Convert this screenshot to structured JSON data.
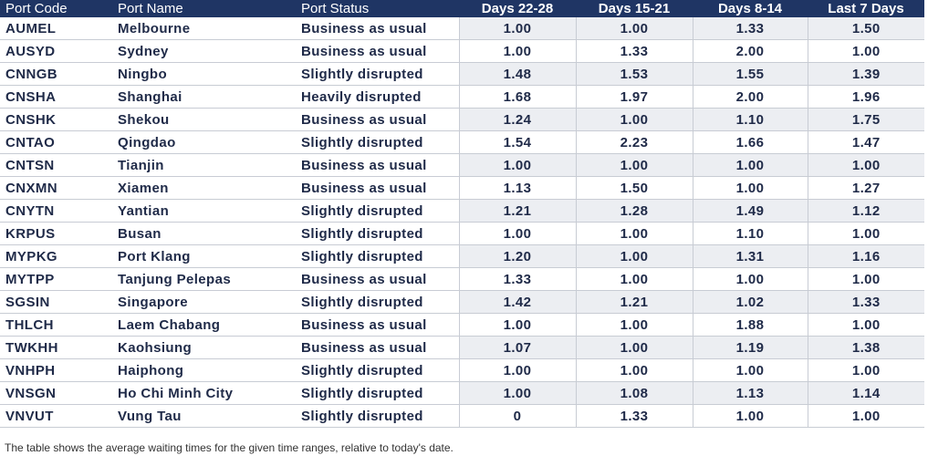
{
  "table": {
    "headers": [
      "Port Code",
      "Port Name",
      "Port Status",
      "Days 22-28",
      "Days 15-21",
      "Days 8-14",
      "Last 7 Days"
    ],
    "rows": [
      {
        "code": "AUMEL",
        "name": "Melbourne",
        "status": "Business as usual",
        "d22_28": "1.00",
        "d15_21": "1.00",
        "d8_14": "1.33",
        "last7": "1.50"
      },
      {
        "code": "AUSYD",
        "name": "Sydney",
        "status": "Business as usual",
        "d22_28": "1.00",
        "d15_21": "1.33",
        "d8_14": "2.00",
        "last7": "1.00"
      },
      {
        "code": "CNNGB",
        "name": "Ningbo",
        "status": "Slightly disrupted",
        "d22_28": "1.48",
        "d15_21": "1.53",
        "d8_14": "1.55",
        "last7": "1.39"
      },
      {
        "code": "CNSHA",
        "name": "Shanghai",
        "status": "Heavily disrupted",
        "d22_28": "1.68",
        "d15_21": "1.97",
        "d8_14": "2.00",
        "last7": "1.96"
      },
      {
        "code": "CNSHK",
        "name": "Shekou",
        "status": "Business as usual",
        "d22_28": "1.24",
        "d15_21": "1.00",
        "d8_14": "1.10",
        "last7": "1.75"
      },
      {
        "code": "CNTAO",
        "name": "Qingdao",
        "status": "Slightly disrupted",
        "d22_28": "1.54",
        "d15_21": "2.23",
        "d8_14": "1.66",
        "last7": "1.47"
      },
      {
        "code": "CNTSN",
        "name": "Tianjin",
        "status": "Business as usual",
        "d22_28": "1.00",
        "d15_21": "1.00",
        "d8_14": "1.00",
        "last7": "1.00"
      },
      {
        "code": "CNXMN",
        "name": "Xiamen",
        "status": "Business as usual",
        "d22_28": "1.13",
        "d15_21": "1.50",
        "d8_14": "1.00",
        "last7": "1.27"
      },
      {
        "code": "CNYTN",
        "name": "Yantian",
        "status": "Slightly disrupted",
        "d22_28": "1.21",
        "d15_21": "1.28",
        "d8_14": "1.49",
        "last7": "1.12"
      },
      {
        "code": "KRPUS",
        "name": "Busan",
        "status": "Slightly disrupted",
        "d22_28": "1.00",
        "d15_21": "1.00",
        "d8_14": "1.10",
        "last7": "1.00"
      },
      {
        "code": "MYPKG",
        "name": "Port Klang",
        "status": "Slightly disrupted",
        "d22_28": "1.20",
        "d15_21": "1.00",
        "d8_14": "1.31",
        "last7": "1.16"
      },
      {
        "code": "MYTPP",
        "name": "Tanjung Pelepas",
        "status": "Business as usual",
        "d22_28": "1.33",
        "d15_21": "1.00",
        "d8_14": "1.00",
        "last7": "1.00"
      },
      {
        "code": "SGSIN",
        "name": "Singapore",
        "status": "Slightly disrupted",
        "d22_28": "1.42",
        "d15_21": "1.21",
        "d8_14": "1.02",
        "last7": "1.33"
      },
      {
        "code": "THLCH",
        "name": "Laem Chabang",
        "status": "Business as usual",
        "d22_28": "1.00",
        "d15_21": "1.00",
        "d8_14": "1.88",
        "last7": "1.00"
      },
      {
        "code": "TWKHH",
        "name": "Kaohsiung",
        "status": "Business as usual",
        "d22_28": "1.07",
        "d15_21": "1.00",
        "d8_14": "1.19",
        "last7": "1.38"
      },
      {
        "code": "VNHPH",
        "name": "Haiphong",
        "status": "Slightly disrupted",
        "d22_28": "1.00",
        "d15_21": "1.00",
        "d8_14": "1.00",
        "last7": "1.00"
      },
      {
        "code": "VNSGN",
        "name": "Ho Chi Minh City",
        "status": "Slightly disrupted",
        "d22_28": "1.00",
        "d15_21": "1.08",
        "d8_14": "1.13",
        "last7": "1.14"
      },
      {
        "code": "VNVUT",
        "name": "Vung Tau",
        "status": "Slightly disrupted",
        "d22_28": "0",
        "d15_21": "1.33",
        "d8_14": "1.00",
        "last7": "1.00"
      }
    ]
  },
  "footnote": "The table shows the average waiting times for the given time ranges, relative to today's date.",
  "colors": {
    "header_bg": "#1f3564",
    "header_text": "#ffffff",
    "alt_row_bg": "#eceef2",
    "body_text": "#1f2a48"
  }
}
